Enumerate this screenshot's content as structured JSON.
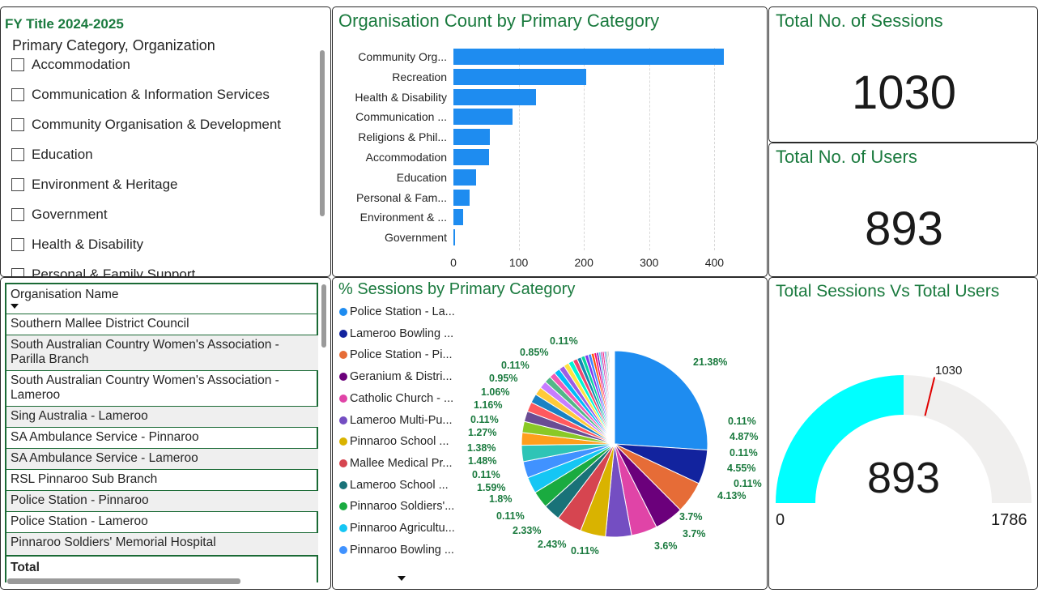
{
  "slicer": {
    "title": "FY Title 2024-2025",
    "subtitle": "Primary Category, Organization",
    "items": [
      "Accommodation",
      "Communication & Information Services",
      "Community Organisation & Development",
      "Education",
      "Environment & Heritage",
      "Government",
      "Health & Disability",
      "Personal & Family Support"
    ]
  },
  "table": {
    "header": "Organisation Name",
    "rows": [
      "Southern Mallee District Council",
      "South Australian Country Women's Association - Parilla Branch",
      "South Australian Country Women's Association - Lameroo",
      "Sing Australia - Lameroo",
      "SA Ambulance Service - Pinnaroo",
      "SA Ambulance Service - Lameroo",
      "RSL Pinnaroo Sub Branch",
      "Police Station - Pinnaroo",
      "Police Station - Lameroo",
      "Pinnaroo Soldiers' Memorial Hospital"
    ],
    "total_label": "Total"
  },
  "org_chart": {
    "title": "Organisation Count by Primary Category",
    "bar_color": "#1e8cf0"
  },
  "sessions_card": {
    "title": "Total No. of Sessions",
    "value": "1030"
  },
  "users_card": {
    "title": "Total No. of Users",
    "value": "893"
  },
  "pie_panel": {
    "title": "% Sessions by Primary Category",
    "legend": [
      {
        "label": "Police Station - La...",
        "color": "#1e8cf0"
      },
      {
        "label": "Lameroo Bowling ...",
        "color": "#12239e"
      },
      {
        "label": "Police Station - Pi...",
        "color": "#e66c37"
      },
      {
        "label": "Geranium & Distri...",
        "color": "#6b007b"
      },
      {
        "label": "Catholic Church - ...",
        "color": "#e044a7"
      },
      {
        "label": "Lameroo Multi-Pu...",
        "color": "#744ec2"
      },
      {
        "label": "Pinnaroo School ...",
        "color": "#d9b300"
      },
      {
        "label": "Mallee Medical Pr...",
        "color": "#d64550"
      },
      {
        "label": "Lameroo School ...",
        "color": "#197278"
      },
      {
        "label": "Pinnaroo Soldiers'...",
        "color": "#1aab40"
      },
      {
        "label": "Pinnaroo Agricultu...",
        "color": "#15c6f4"
      },
      {
        "label": "Pinnaroo Bowling ...",
        "color": "#4092ff"
      }
    ],
    "pie_labels": [
      "21.38%",
      "0.11%",
      "4.87%",
      "0.11%",
      "4.55%",
      "0.11%",
      "4.13%",
      "3.7%",
      "3.7%",
      "3.6%",
      "0.11%",
      "2.43%",
      "2.33%",
      "0.11%",
      "1.8%",
      "1.59%",
      "0.11%",
      "1.48%",
      "1.38%",
      "1.27%",
      "0.11%",
      "1.16%",
      "1.06%",
      "0.95%",
      "0.11%",
      "0.85%",
      "0.11%"
    ]
  },
  "gauge": {
    "title": "Total Sessions Vs Total Users",
    "value": "893",
    "min": "0",
    "max": "1786",
    "target": "1030",
    "fill_color": "#00ffff",
    "track_color": "#f0efee",
    "target_color": "#e00000"
  },
  "chart_data": [
    {
      "type": "bar",
      "title": "Organisation Count by Primary Category",
      "categories": [
        "Community Org...",
        "Recreation",
        "Health & Disability",
        "Communication ...",
        "Religions & Phil...",
        "Accommodation",
        "Education",
        "Personal & Fam...",
        "Environment & ...",
        "Government"
      ],
      "values": [
        415,
        203,
        127,
        91,
        56,
        54,
        35,
        25,
        15,
        3
      ],
      "xticks": [
        "0",
        "100",
        "200",
        "300",
        "400"
      ],
      "xlim": [
        0,
        440
      ],
      "grid": true
    },
    {
      "type": "pie",
      "title": "% Sessions by Primary Category",
      "slices": [
        {
          "label": "Police Station - La...",
          "value": 21.38,
          "color": "#1e8cf0"
        },
        {
          "label": "Lameroo Bowling ...",
          "value": 4.87,
          "color": "#12239e"
        },
        {
          "label": "Police Station - Pi...",
          "value": 4.55,
          "color": "#e66c37"
        },
        {
          "label": "Geranium & Distri...",
          "value": 4.13,
          "color": "#6b007b"
        },
        {
          "label": "Catholic Church - ...",
          "value": 3.7,
          "color": "#e044a7"
        },
        {
          "label": "Lameroo Multi-Pu...",
          "value": 3.7,
          "color": "#744ec2"
        },
        {
          "label": "Pinnaroo School ...",
          "value": 3.6,
          "color": "#d9b300"
        },
        {
          "label": "Mallee Medical Pr...",
          "value": 3.6,
          "color": "#d64550"
        },
        {
          "label": "Lameroo School ...",
          "value": 2.43,
          "color": "#197278"
        },
        {
          "label": "Pinnaroo Soldiers'...",
          "value": 2.43,
          "color": "#1aab40"
        },
        {
          "label": "Pinnaroo Agricultu...",
          "value": 2.33,
          "color": "#15c6f4"
        },
        {
          "label": "Pinnaroo Bowling ...",
          "value": 2.33,
          "color": "#4092ff"
        }
      ]
    }
  ]
}
